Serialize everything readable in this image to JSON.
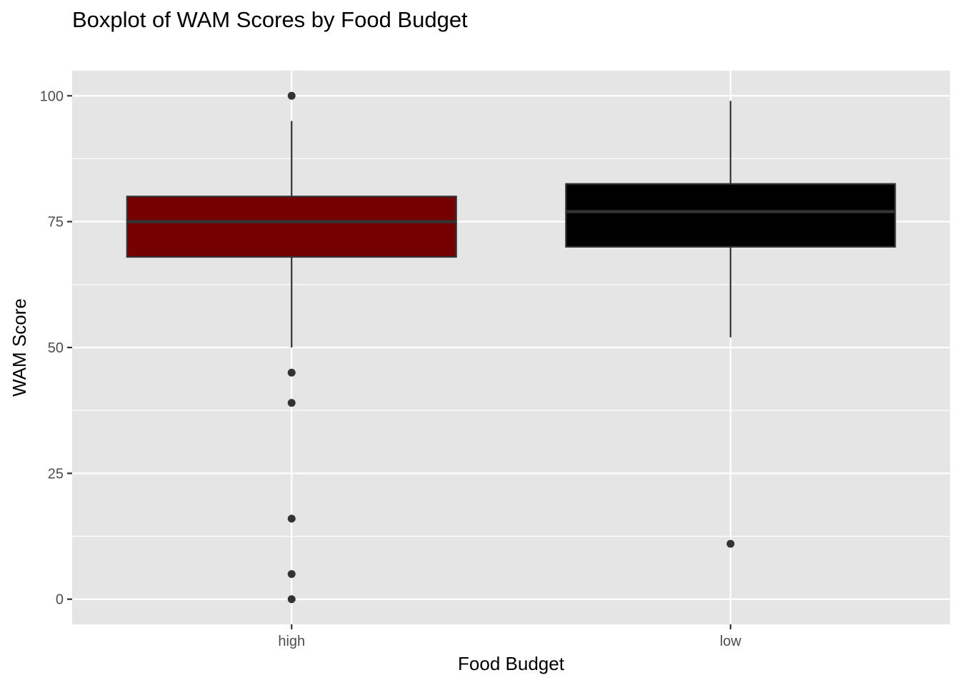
{
  "chart_data": {
    "type": "boxplot",
    "title": "Boxplot of WAM Scores by Food Budget",
    "xlabel": "Food Budget",
    "ylabel": "WAM Score",
    "categories": [
      "high",
      "low"
    ],
    "ylim": [
      -5,
      105
    ],
    "yticks": [
      0,
      25,
      50,
      75,
      100
    ],
    "grid": true,
    "legend": "none",
    "panel_background": "#e5e5e5",
    "grid_color": "#ffffff",
    "boxes": [
      {
        "category": "high",
        "fill": "#750000",
        "whisker_low": 50,
        "q1": 68,
        "median": 75,
        "q3": 80,
        "whisker_high": 95,
        "outliers": [
          100,
          45,
          39,
          16,
          5,
          0
        ]
      },
      {
        "category": "low",
        "fill": "#000000",
        "whisker_low": 52,
        "q1": 70,
        "median": 77,
        "q3": 82.5,
        "whisker_high": 99,
        "outliers": [
          11
        ]
      }
    ]
  }
}
